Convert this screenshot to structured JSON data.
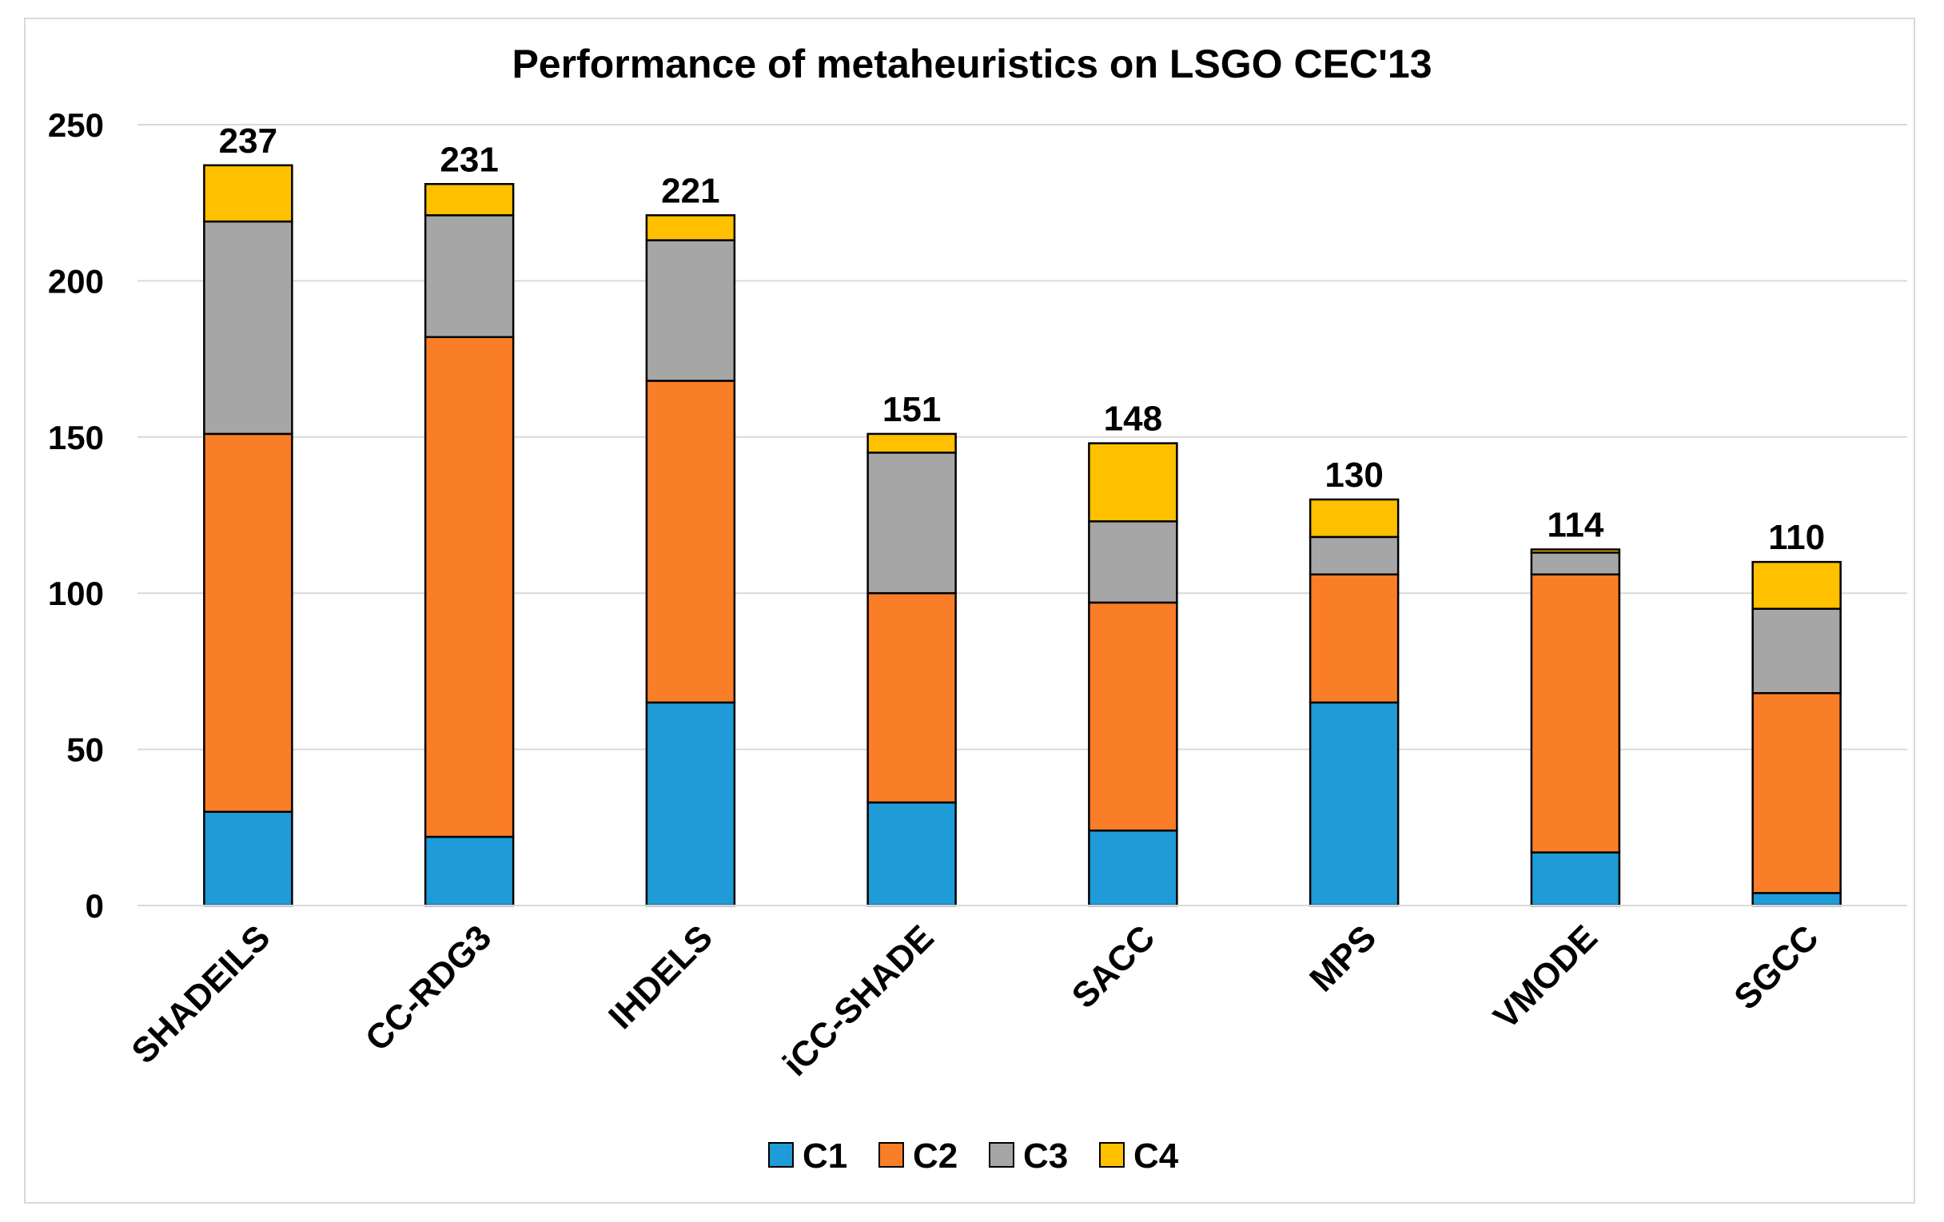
{
  "chart_data": {
    "type": "bar",
    "stacked": true,
    "title": "Performance of metaheuristics on LSGO CEC'13",
    "xlabel": "",
    "ylabel": "",
    "ylim": [
      0,
      250
    ],
    "yticks": [
      0,
      50,
      100,
      150,
      200,
      250
    ],
    "grid": true,
    "legend_position": "bottom",
    "categories": [
      "SHADEILS",
      "CC-RDG3",
      "IHDELS",
      "iCC-SHADE",
      "SACC",
      "MPS",
      "VMODE",
      "SGCC"
    ],
    "series": [
      {
        "name": "C1",
        "color": "#1f9bd7",
        "values": [
          30,
          22,
          65,
          33,
          24,
          65,
          17,
          4
        ]
      },
      {
        "name": "C2",
        "color": "#fa7d28",
        "values": [
          121,
          160,
          103,
          67,
          73,
          41,
          89,
          64
        ]
      },
      {
        "name": "C3",
        "color": "#a6a6a6",
        "values": [
          68,
          39,
          45,
          45,
          26,
          12,
          7,
          27
        ]
      },
      {
        "name": "C4",
        "color": "#ffc000",
        "values": [
          18,
          10,
          8,
          6,
          25,
          12,
          1,
          15
        ]
      }
    ],
    "totals": [
      237,
      231,
      221,
      151,
      148,
      130,
      114,
      110
    ]
  }
}
